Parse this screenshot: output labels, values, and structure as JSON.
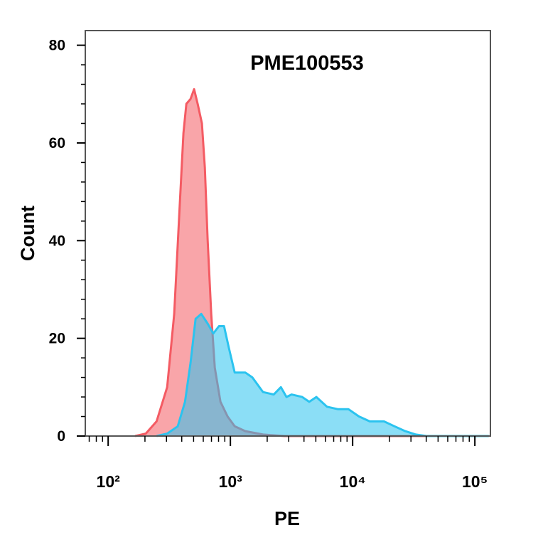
{
  "chart_data": {
    "type": "histogram-overlay",
    "title": "PME100553",
    "x_label": "PE",
    "y_label": "Count",
    "xscale": "log",
    "xlim": [
      65,
      134000
    ],
    "ylim": [
      0,
      83
    ],
    "xticks": [
      {
        "value": 100,
        "label": "10²"
      },
      {
        "value": 1000,
        "label": "10³"
      },
      {
        "value": 10000,
        "label": "10⁴"
      },
      {
        "value": 100000,
        "label": "10⁵"
      }
    ],
    "yticks": [
      0,
      20,
      40,
      60,
      80
    ],
    "fill_opacity": 0.55,
    "series": [
      {
        "color": "#f45b63",
        "x": [
          166,
          203,
          249,
          304,
          347,
          381,
          413,
          436,
          472,
          505,
          540,
          585,
          618,
          652,
          697,
          745,
          829,
          948,
          1084,
          1324,
          1849,
          2767,
          130000
        ],
        "values": [
          0,
          0.5,
          3,
          10,
          25,
          45,
          62,
          68,
          69,
          71,
          68,
          64,
          55,
          40,
          25,
          14,
          7,
          4,
          2,
          1,
          0.3,
          0,
          0
        ]
      },
      {
        "color": "#2bc3ef",
        "x": [
          249,
          304,
          371,
          425,
          472,
          519,
          578,
          652,
          725,
          807,
          887,
          973,
          1084,
          1324,
          1514,
          1849,
          2263,
          2588,
          2878,
          3162,
          3867,
          4416,
          5048,
          6175,
          7551,
          9230,
          11272,
          13800,
          18030,
          22030,
          26920,
          32900,
          40260,
          130000
        ],
        "values": [
          0,
          0.5,
          2,
          7,
          15,
          24,
          25,
          23,
          21,
          22.5,
          22.5,
          18,
          13,
          13,
          12,
          9,
          8.5,
          10,
          8,
          8.5,
          8,
          7,
          8,
          6,
          5.5,
          5.5,
          4,
          3,
          3,
          2,
          1,
          0.3,
          0,
          0
        ]
      }
    ]
  }
}
